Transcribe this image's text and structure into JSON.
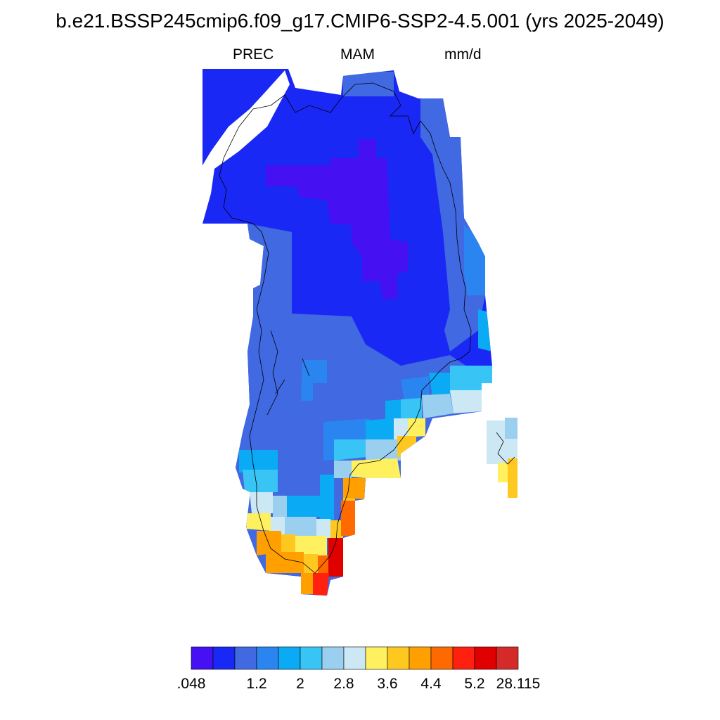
{
  "title": "b.e21.BSSP245cmip6.f09_g17.CMIP6-SSP2-4.5.001 (yrs 2025-2049)",
  "left_string": "PREC",
  "center_string": "MAM",
  "right_string": "mm/d",
  "colorbar": {
    "colors": [
      "#4510f2",
      "#1a28f5",
      "#4169e1",
      "#2a85f0",
      "#0aaaf5",
      "#38c4f5",
      "#9acfef",
      "#cde8f5",
      "#fff060",
      "#ffc820",
      "#ff9f00",
      "#ff6a00",
      "#ff2010",
      "#e00000",
      "#d42a2a"
    ],
    "tick_labels": [
      ".048",
      "1.2",
      "2",
      "2.8",
      "3.6",
      "4.4",
      "5.2",
      "28.115"
    ]
  },
  "map": {
    "region": "Greenland",
    "field": "precipitation, MAM mean",
    "legend_levels": [
      ".048",
      "1.2",
      "2",
      "2.8",
      "3.6",
      "4.4",
      "5.2",
      "28.115"
    ]
  }
}
